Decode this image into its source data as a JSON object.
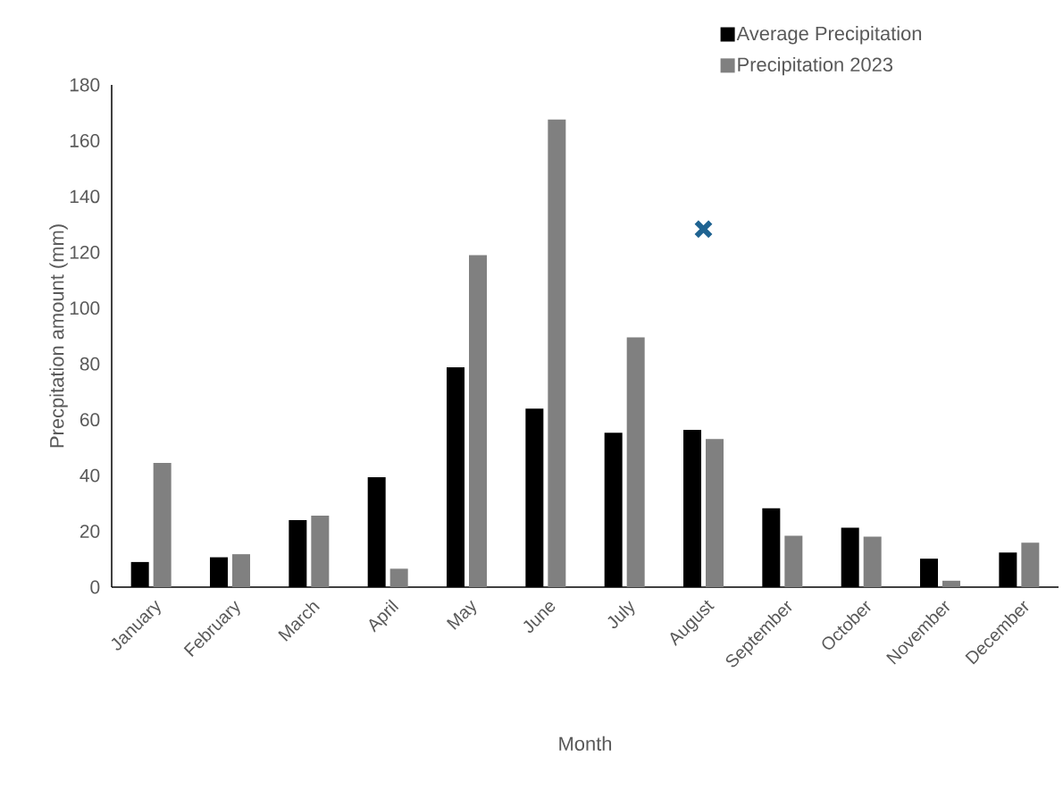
{
  "chart_data": {
    "type": "bar",
    "xlabel": "Month",
    "ylabel": "Precpitation amount (mm)",
    "categories": [
      "January",
      "February",
      "March",
      "April",
      "May",
      "June",
      "July",
      "August",
      "September",
      "October",
      "November",
      "December"
    ],
    "series": [
      {
        "name": "Average Precipitation",
        "color": "#000000",
        "values": [
          9,
          10.7,
          24,
          39.4,
          78.8,
          64,
          55.3,
          56.4,
          28.3,
          21.3,
          10.2,
          12.4
        ]
      },
      {
        "name": "Precipitation 2023",
        "color": "#808080",
        "values": [
          44.5,
          11.8,
          25.6,
          6.6,
          119,
          167.6,
          89.5,
          53.1,
          18.4,
          18.1,
          2.3,
          15.9
        ]
      },
      {
        "type": "scatter",
        "color": "#1f6391",
        "marker": "cross",
        "x": [
          "August"
        ],
        "values": [
          128.3
        ]
      }
    ],
    "ylim": [
      0,
      180
    ],
    "yticks": [
      0,
      20,
      40,
      60,
      80,
      100,
      120,
      140,
      160,
      180
    ],
    "legend": "top right"
  }
}
